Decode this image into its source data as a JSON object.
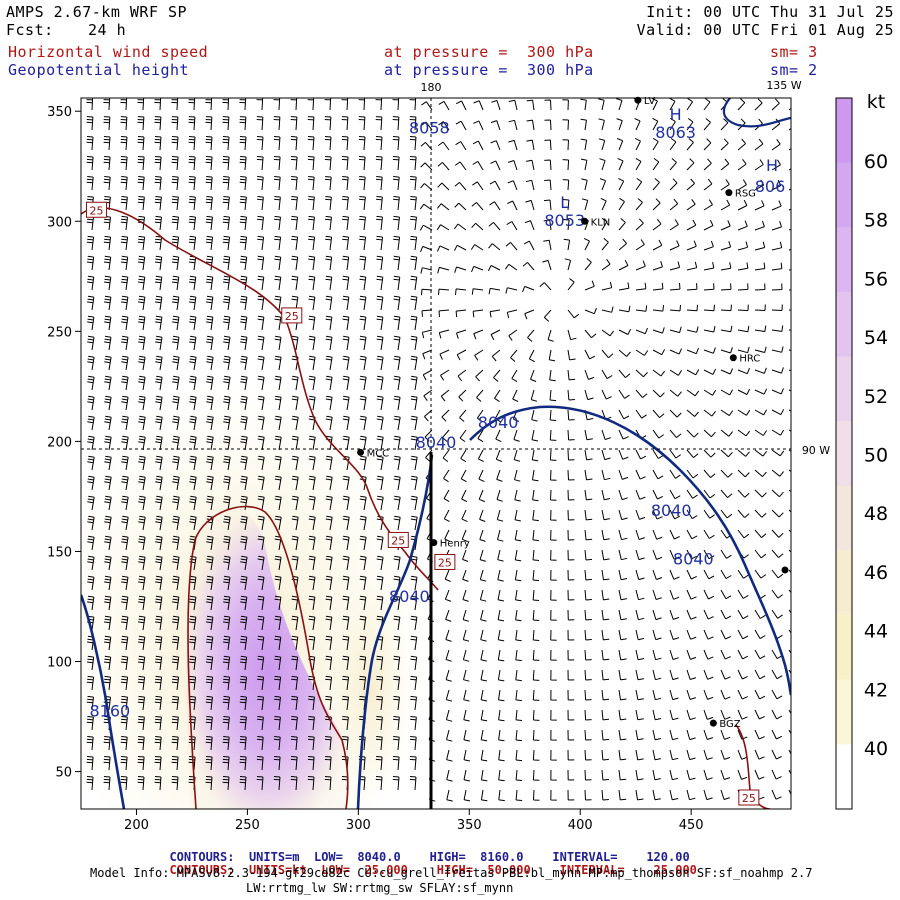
{
  "header": {
    "model": "AMPS 2.67-km WRF SP",
    "fcst_label": "Fcst:",
    "fcst_value": "24 h",
    "init": "Init: 00 UTC Thu 31 Jul 25",
    "valid": "Valid: 00 UTC Fri 01 Aug 25",
    "field1": "Horizontal wind speed",
    "field1_level": "at pressure =  300 hPa",
    "field1_sm": "sm= 3",
    "field2": "Geopotential height",
    "field2_level": "at pressure =  300 hPa",
    "field2_sm": "sm= 2"
  },
  "map_labels": {
    "lon_180": "180",
    "lon_135w": "135 W",
    "lon_90w": "90 W",
    "highs": [
      "H",
      "H"
    ],
    "low": "L",
    "stations": [
      "LV",
      "RSG",
      "KLN",
      "HRC",
      "MCC",
      "Henry",
      "BGZ"
    ],
    "height_labels": [
      "8058",
      "8063",
      "8053",
      "806",
      "8040",
      "8040",
      "8040",
      "8040",
      "8040",
      "8160"
    ],
    "speed_labels": [
      "25",
      "25",
      "25",
      "25",
      "25"
    ]
  },
  "colorbar": {
    "unit": "kt",
    "ticks": [
      "60",
      "58",
      "56",
      "54",
      "52",
      "50",
      "48",
      "46",
      "44",
      "42",
      "40"
    ],
    "colors": [
      "#cc99ee",
      "#d4a8ef",
      "#dcb6f0",
      "#e2c4ef",
      "#e9d3ed",
      "#f0dfe8",
      "#f3e6dc",
      "#f6ecd0",
      "#f8f0c6",
      "#fbf6d9",
      "#ffffff"
    ]
  },
  "chart_data": {
    "type": "contour",
    "xlim": [
      175,
      495
    ],
    "ylim": [
      33,
      356
    ],
    "x_ticks": [
      200,
      250,
      300,
      350,
      400,
      450
    ],
    "y_ticks": [
      50,
      100,
      150,
      200,
      250,
      300,
      350
    ],
    "height_contours": {
      "units": "m",
      "low": "8040.0",
      "high": "8160.0",
      "interval": "120.00",
      "labels": [
        {
          "value": 8040,
          "x": 335,
          "y": 197
        },
        {
          "value": 8040,
          "x": 363,
          "y": 206
        },
        {
          "value": 8040,
          "x": 441,
          "y": 166
        },
        {
          "value": 8040,
          "x": 451,
          "y": 144
        },
        {
          "value": 8040,
          "x": 323,
          "y": 127
        },
        {
          "value": 8160,
          "x": 188,
          "y": 75
        }
      ],
      "extrema": [
        {
          "type": "H",
          "value": 8063,
          "x": 443,
          "y": 346
        },
        {
          "type": "L",
          "value": 8053,
          "x": 393,
          "y": 306
        },
        {
          "type": "H",
          "value": 8058,
          "x": 332,
          "y": 348
        }
      ]
    },
    "speed_contours": {
      "units": "kt",
      "low": "25.000",
      "high": "50.000",
      "interval": "25.000",
      "labels": [
        {
          "value": 25,
          "x": 182,
          "y": 305
        },
        {
          "value": 25,
          "x": 270,
          "y": 257
        },
        {
          "value": 25,
          "x": 318,
          "y": 155
        },
        {
          "value": 25,
          "x": 339,
          "y": 145
        },
        {
          "value": 25,
          "x": 476,
          "y": 38
        }
      ]
    },
    "stations": [
      {
        "name": "LV",
        "x": 426,
        "y": 355
      },
      {
        "name": "RSG",
        "x": 467,
        "y": 313
      },
      {
        "name": "KLN",
        "x": 402,
        "y": 300
      },
      {
        "name": "HRC",
        "x": 469,
        "y": 238
      },
      {
        "name": "MCC",
        "x": 301,
        "y": 195
      },
      {
        "name": "Henry",
        "x": 334,
        "y": 154
      },
      {
        "name": "BGZ",
        "x": 460,
        "y": 72
      }
    ]
  },
  "footer": {
    "line1_label": "CONTOURS:",
    "line1_units": "UNITS=m",
    "line1_low": "LOW=  8040.0",
    "line1_high": "HIGH=  8160.0",
    "line1_interval": "INTERVAL=    120.00",
    "line2_label": "CONTOURS:",
    "line2_units": "UNITS=kt",
    "line2_low": "LOW=  25.000",
    "line2_high": "HIGH=  50.000",
    "line2_interval": "INTERVAL=    25.000",
    "model_info": "Model Info: MPASv8.2.3-194-gf29cd82c CU:cu_grell_freitas PBL:bl_mynn MP:mp_thompson SF:sf_noahmp 2.7",
    "model_info2": "LW:rrtmg_lw SW:rrtmg_sw SFLAY:sf_mynn"
  }
}
